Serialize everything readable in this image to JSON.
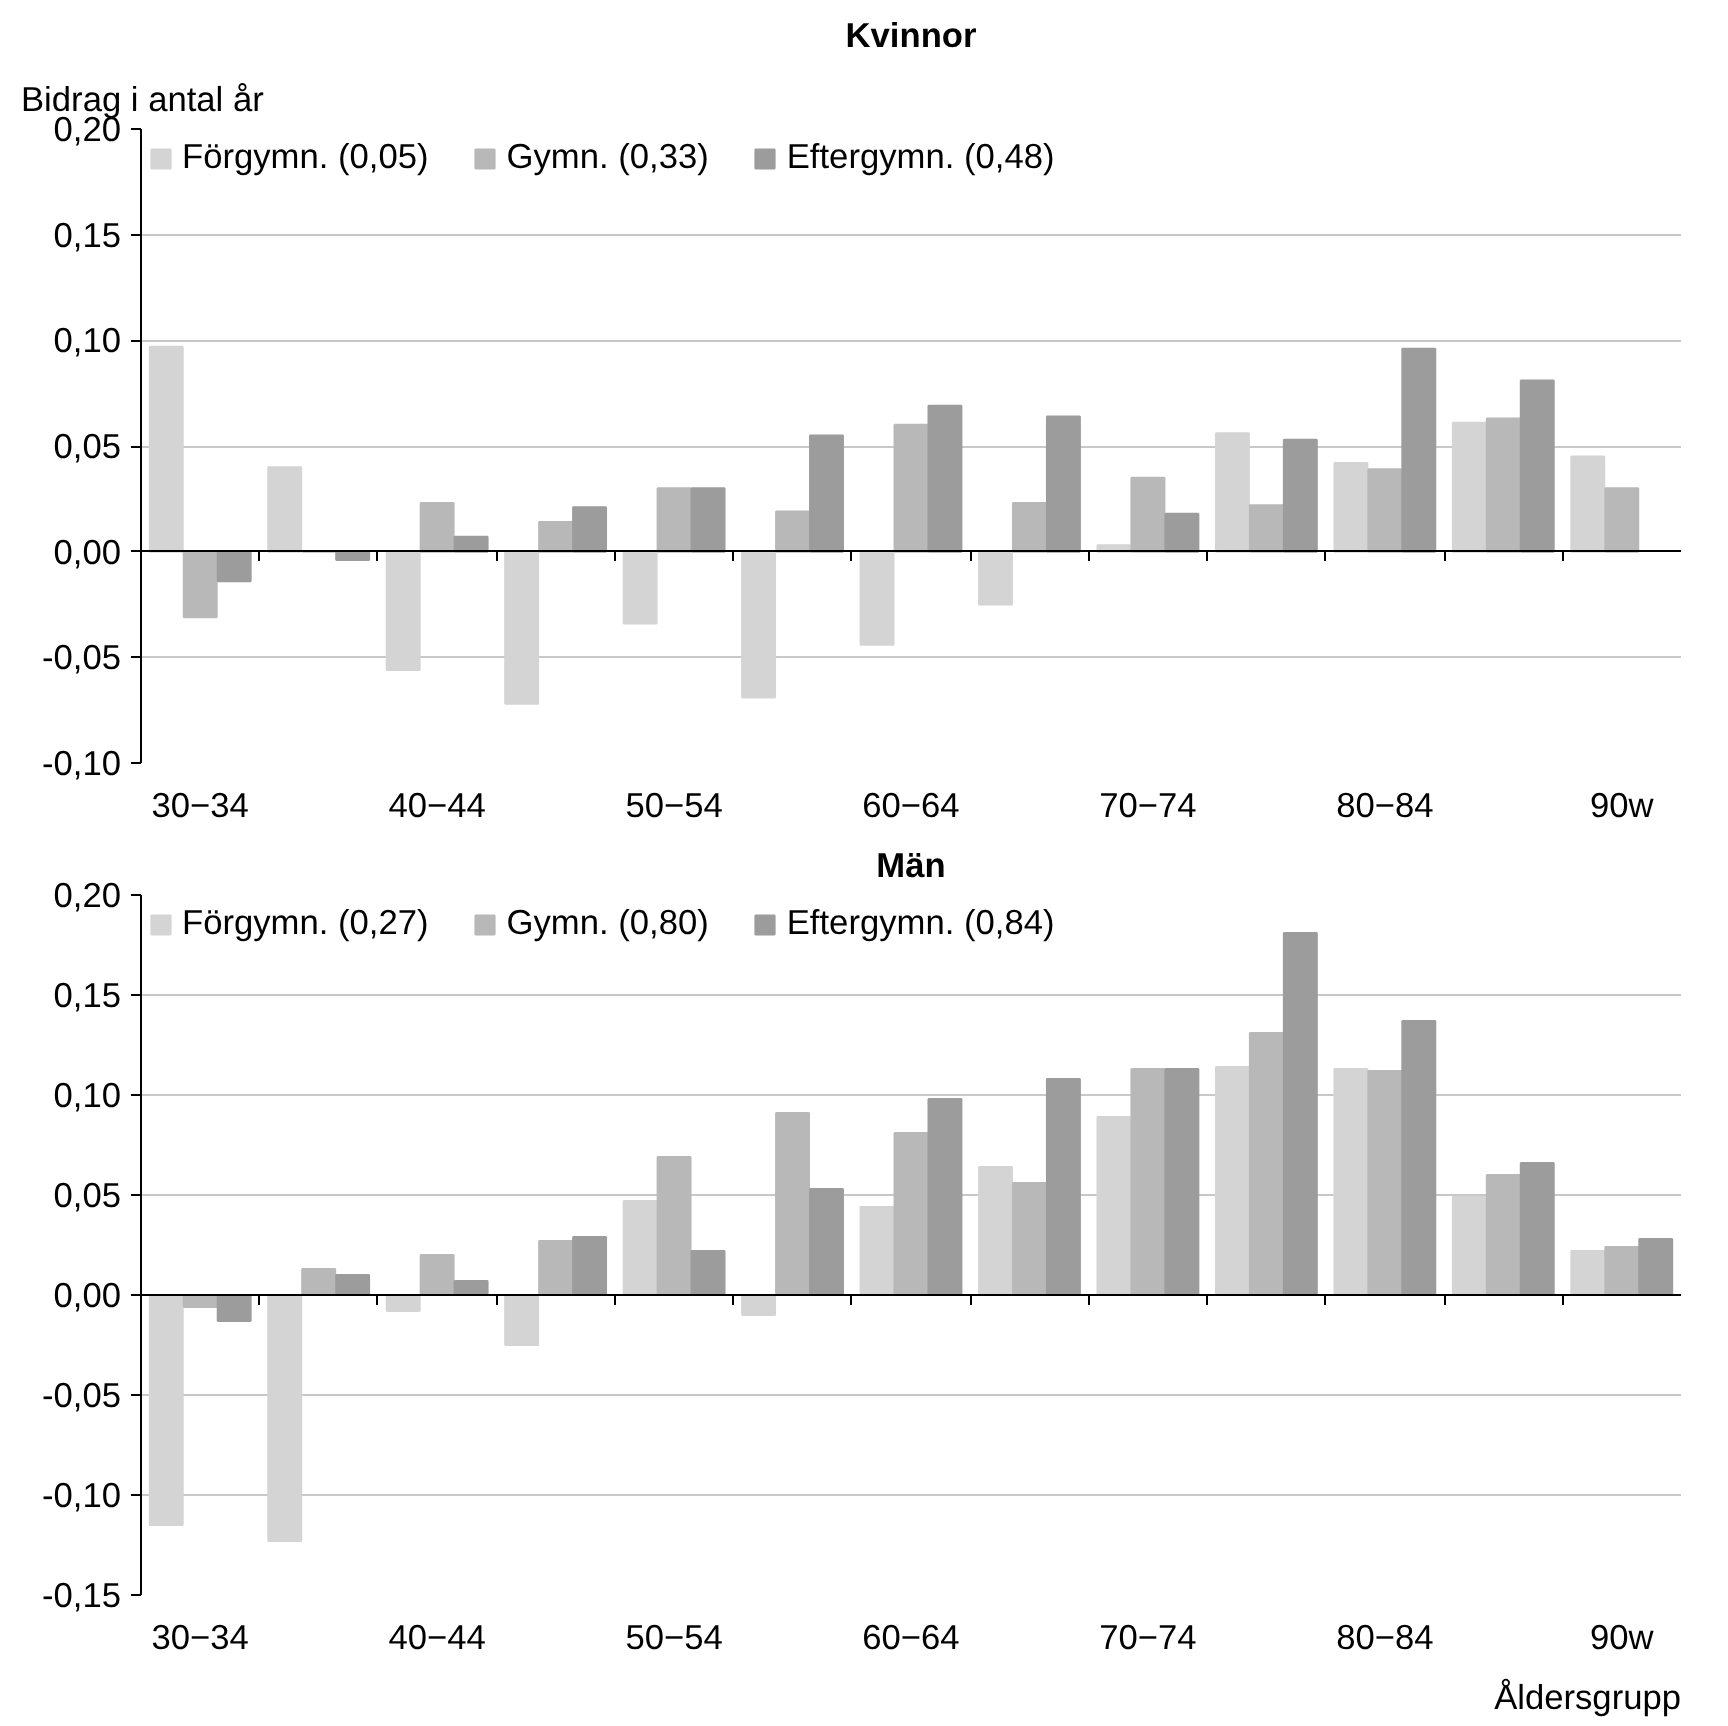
{
  "chart_data": [
    {
      "type": "bar",
      "title": "Kvinnor",
      "ylabel": "Bidrag i antal år",
      "categories": [
        "30−34",
        null,
        "40−44",
        null,
        "50−54",
        null,
        "60−64",
        null,
        "70−74",
        null,
        "80−84",
        null,
        "90w"
      ],
      "series": [
        {
          "name": "Förgymn. (0,05)",
          "color": "#d4d4d4",
          "values": [
            0.097,
            0.04,
            -0.056,
            -0.072,
            -0.034,
            -0.069,
            -0.044,
            -0.025,
            0.003,
            0.056,
            0.042,
            0.061,
            0.045
          ]
        },
        {
          "name": "Gymn. (0,33)",
          "color": "#b8b8b8",
          "values": [
            -0.031,
            0,
            0.023,
            0.014,
            0.03,
            0.019,
            0.06,
            0.023,
            0.035,
            0.022,
            0.039,
            0.063,
            0.03
          ]
        },
        {
          "name": "Eftergymn. (0,48)",
          "color": "#9c9c9c",
          "values": [
            -0.014,
            -0.004,
            0.007,
            0.021,
            0.03,
            0.055,
            0.069,
            0.064,
            0.018,
            0.053,
            0.096,
            0.081,
            null
          ]
        }
      ],
      "ylim": [
        -0.1,
        0.2
      ],
      "yticks": [
        {
          "value": -0.1,
          "label": "-0,10"
        },
        {
          "value": -0.05,
          "label": "-0,05"
        },
        {
          "value": 0,
          "label": "0,00"
        },
        {
          "value": 0.05,
          "label": "0,05"
        },
        {
          "value": 0.1,
          "label": "0,10"
        },
        {
          "value": 0.15,
          "label": "0,15"
        },
        {
          "value": 0.2,
          "label": "0,20"
        }
      ],
      "grid": "y",
      "legend": "top left"
    },
    {
      "type": "bar",
      "title": "Män",
      "xlabel": "Åldersgrupp",
      "categories": [
        "30−34",
        null,
        "40−44",
        null,
        "50−54",
        null,
        "60−64",
        null,
        "70−74",
        null,
        "80−84",
        null,
        "90w"
      ],
      "series": [
        {
          "name": "Förgymn. (0,27)",
          "color": "#d4d4d4",
          "values": [
            -0.115,
            -0.123,
            -0.008,
            -0.025,
            0.047,
            -0.01,
            0.044,
            0.064,
            0.089,
            0.114,
            0.113,
            0.049,
            0.022
          ]
        },
        {
          "name": "Gymn. (0,80)",
          "color": "#b8b8b8",
          "values": [
            -0.006,
            0.013,
            0.02,
            0.027,
            0.069,
            0.091,
            0.081,
            0.056,
            0.113,
            0.131,
            0.112,
            0.06,
            0.024
          ]
        },
        {
          "name": "Eftergymn. (0,84)",
          "color": "#9c9c9c",
          "values": [
            -0.013,
            0.01,
            0.007,
            0.029,
            0.022,
            0.053,
            0.098,
            0.108,
            0.113,
            0.181,
            0.137,
            0.066,
            0.028
          ]
        }
      ],
      "ylim": [
        -0.15,
        0.2
      ],
      "yticks": [
        {
          "value": -0.15,
          "label": "-0,15"
        },
        {
          "value": -0.1,
          "label": "-0,10"
        },
        {
          "value": -0.05,
          "label": "-0,05"
        },
        {
          "value": 0,
          "label": "0,00"
        },
        {
          "value": 0.05,
          "label": "0,05"
        },
        {
          "value": 0.1,
          "label": "0,10"
        },
        {
          "value": 0.15,
          "label": "0,15"
        },
        {
          "value": 0.2,
          "label": "0,20"
        }
      ],
      "grid": "y",
      "legend": "top left"
    }
  ]
}
